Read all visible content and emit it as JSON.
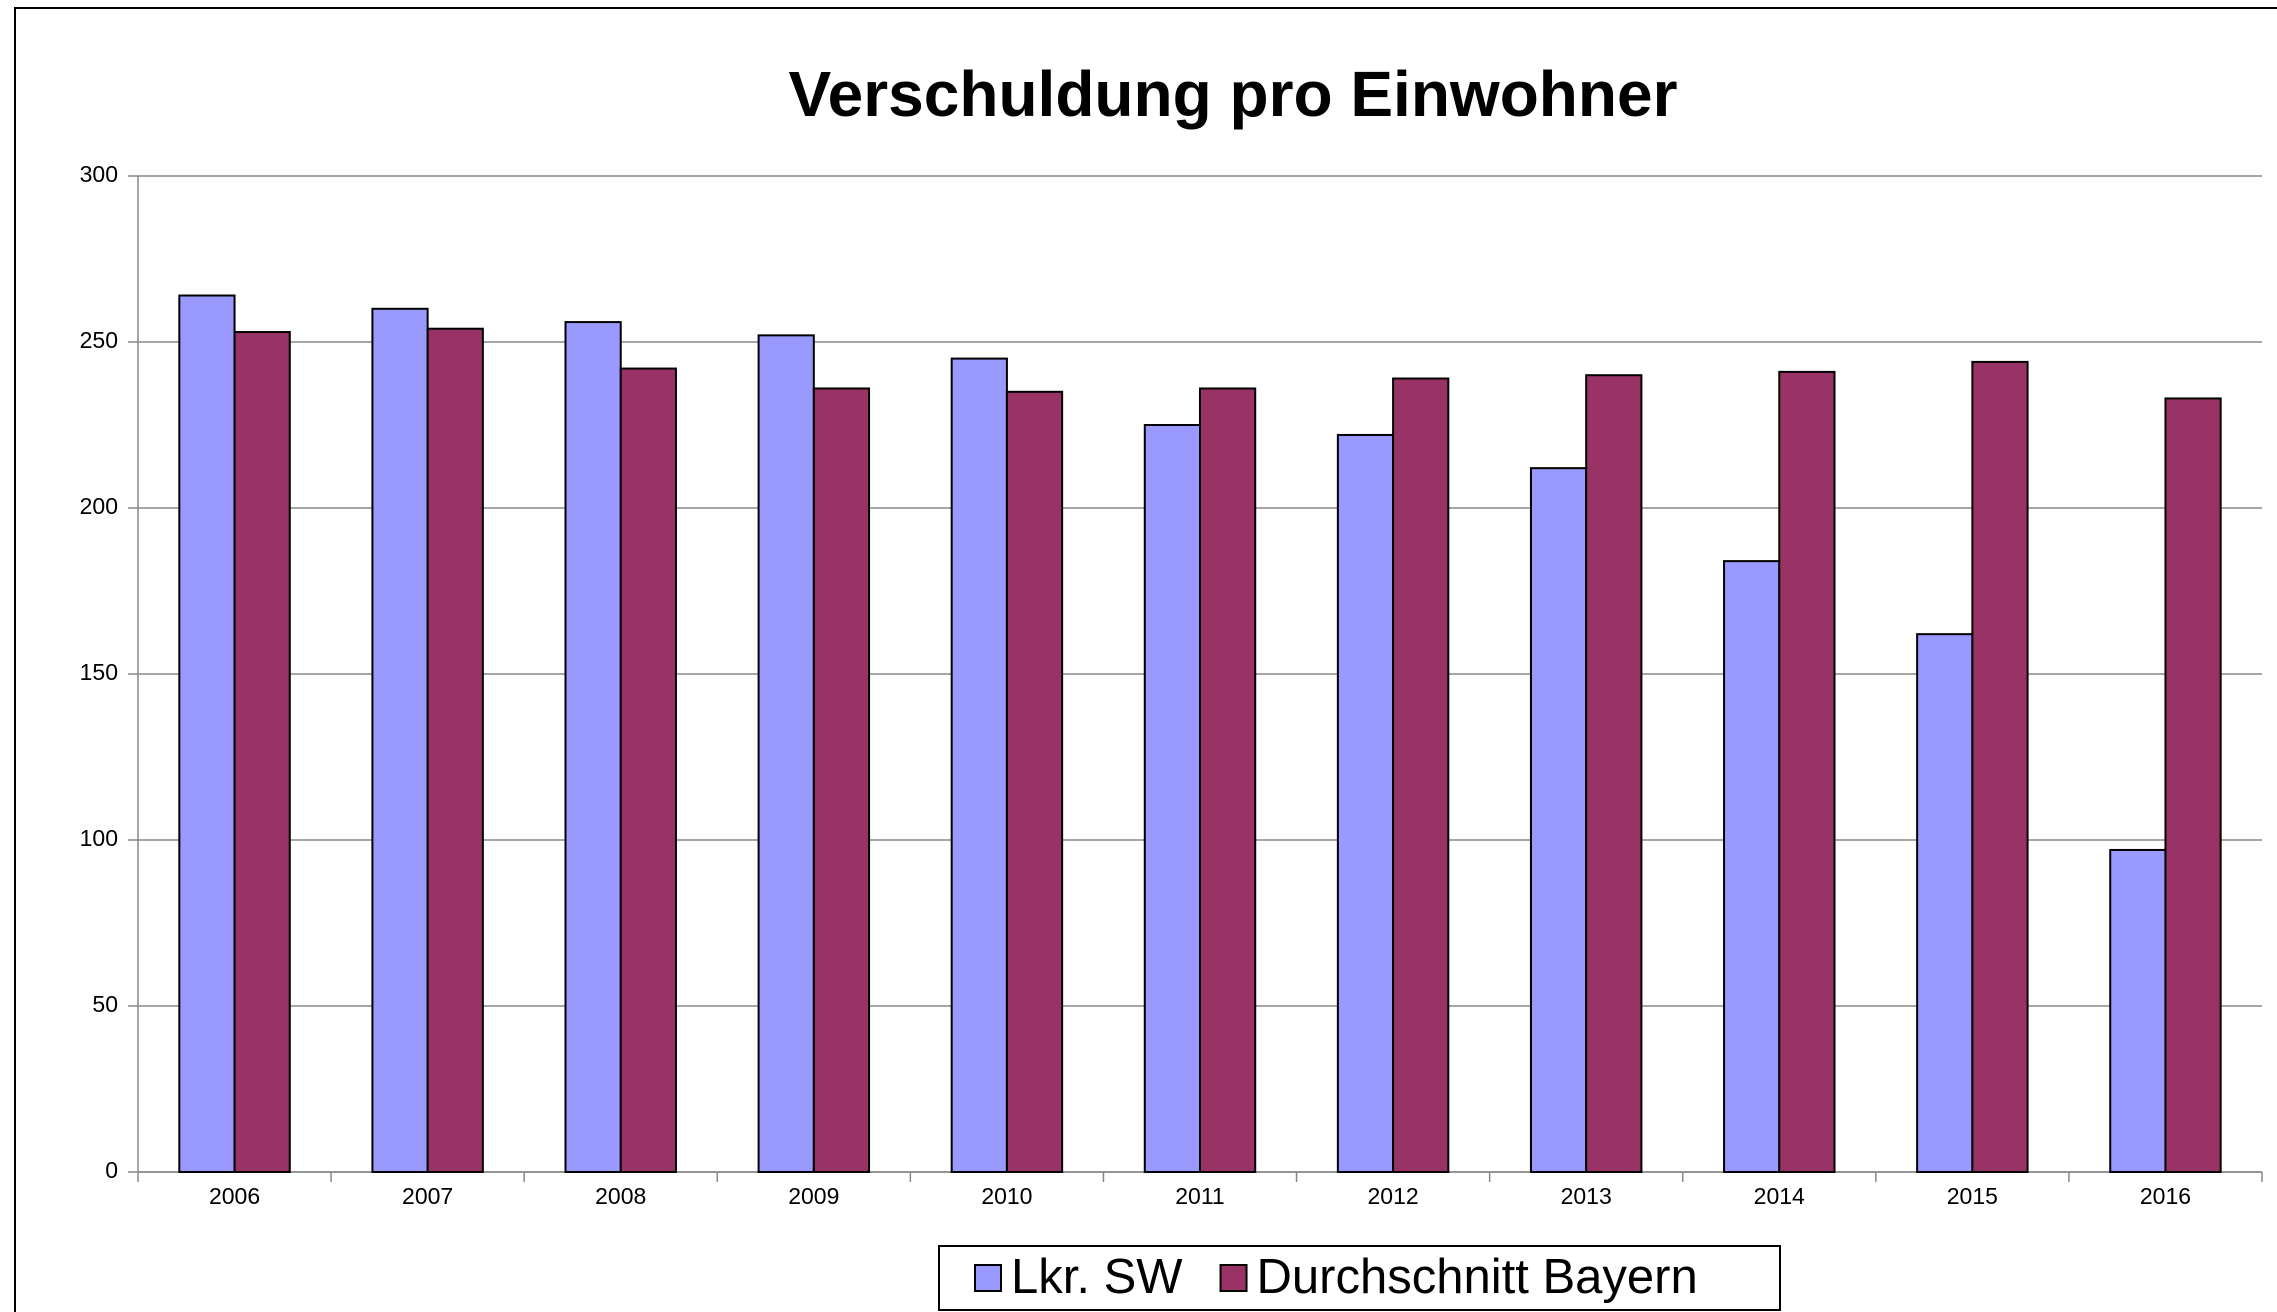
{
  "chart_data": {
    "type": "bar",
    "title": "Verschuldung pro Einwohner",
    "categories": [
      "2006",
      "2007",
      "2008",
      "2009",
      "2010",
      "2011",
      "2012",
      "2013",
      "2014",
      "2015",
      "2016"
    ],
    "series": [
      {
        "name": "Lkr. SW",
        "color": "#9999ff",
        "values": [
          264,
          260,
          256,
          252,
          245,
          225,
          222,
          212,
          184,
          162,
          97
        ]
      },
      {
        "name": "Durchschnitt Bayern",
        "color": "#993366",
        "values": [
          253,
          254,
          242,
          236,
          235,
          236,
          239,
          240,
          241,
          244,
          233
        ]
      }
    ],
    "ylim": [
      0,
      300
    ],
    "yticks": [
      0,
      50,
      100,
      150,
      200,
      250,
      300
    ],
    "grid": true,
    "legend": "bottom"
  }
}
